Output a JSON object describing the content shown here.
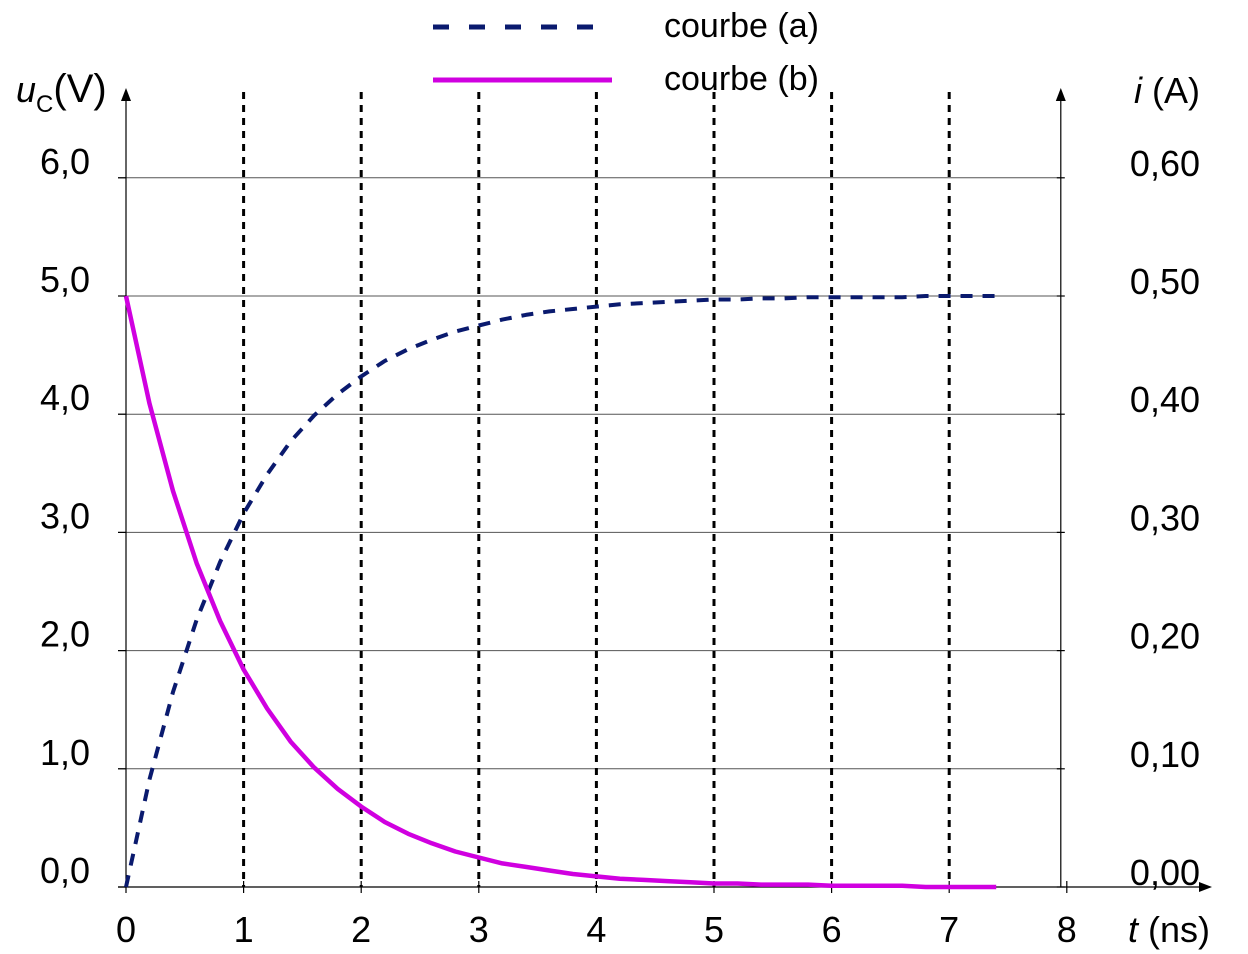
{
  "chart_data": {
    "type": "line",
    "legend": {
      "placement": "top-center",
      "entries": [
        {
          "label": "courbe (a)",
          "style": "dashed",
          "color": "#0a1a6e"
        },
        {
          "label": "courbe (b)",
          "style": "solid",
          "color": "#d000e0"
        }
      ]
    },
    "x_axis": {
      "label_var": "t",
      "label_unit": " (ns)",
      "range": [
        0,
        8
      ],
      "ticks": [
        "0",
        "1",
        "2",
        "3",
        "4",
        "5",
        "6",
        "7",
        "8"
      ]
    },
    "y_axis_left": {
      "label_var": "u",
      "label_sub": "C",
      "label_unit": "(V)",
      "range": [
        0,
        6.6
      ],
      "ticks": [
        "0,0",
        "1,0",
        "2,0",
        "3,0",
        "4,0",
        "5,0",
        "6,0"
      ]
    },
    "y_axis_right": {
      "label_var": "i",
      "label_unit": " (A)",
      "range": [
        0,
        0.66
      ],
      "ticks": [
        "0,00",
        "0,10",
        "0,20",
        "0,30",
        "0,40",
        "0,50",
        "0,60"
      ]
    },
    "grid": {
      "horizontal": true,
      "vertical_dashed": [
        1,
        2,
        3,
        4,
        5,
        6,
        7
      ]
    },
    "x": [
      0,
      0.2,
      0.4,
      0.6,
      0.8,
      1.0,
      1.2,
      1.4,
      1.6,
      1.8,
      2.0,
      2.2,
      2.4,
      2.6,
      2.8,
      3.0,
      3.2,
      3.4,
      3.6,
      3.8,
      4.0,
      4.2,
      4.4,
      4.6,
      4.8,
      5.0,
      5.2,
      5.4,
      5.6,
      5.8,
      6.0,
      6.2,
      6.4,
      6.6,
      6.8,
      7.0,
      7.2,
      7.4
    ],
    "series": [
      {
        "name": "courbe (a)",
        "axis": "left",
        "values": [
          0.0,
          0.91,
          1.65,
          2.26,
          2.75,
          3.16,
          3.49,
          3.77,
          3.99,
          4.17,
          4.32,
          4.45,
          4.55,
          4.63,
          4.7,
          4.75,
          4.8,
          4.84,
          4.87,
          4.89,
          4.91,
          4.93,
          4.94,
          4.95,
          4.96,
          4.97,
          4.97,
          4.98,
          4.98,
          4.99,
          4.99,
          4.99,
          4.99,
          4.99,
          5.0,
          5.0,
          5.0,
          5.0
        ]
      },
      {
        "name": "courbe (b)",
        "axis": "right",
        "values": [
          0.5,
          0.409,
          0.335,
          0.274,
          0.225,
          0.184,
          0.151,
          0.123,
          0.101,
          0.083,
          0.068,
          0.055,
          0.045,
          0.037,
          0.03,
          0.025,
          0.02,
          0.017,
          0.014,
          0.011,
          0.009,
          0.007,
          0.006,
          0.005,
          0.004,
          0.003,
          0.003,
          0.002,
          0.002,
          0.002,
          0.001,
          0.001,
          0.001,
          0.001,
          0.0,
          0.0,
          0.0,
          0.0
        ]
      }
    ]
  }
}
